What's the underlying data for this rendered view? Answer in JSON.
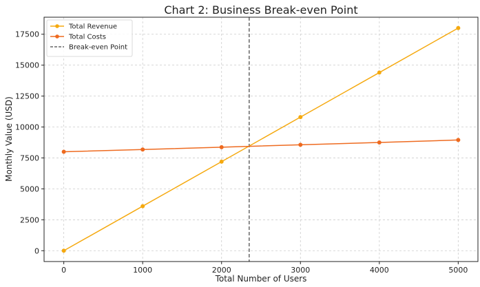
{
  "chart_data": {
    "type": "line",
    "title": "Chart 2: Business Break-even Point",
    "xlabel": "Total Number of Users",
    "ylabel": "Monthly Value (USD)",
    "x": [
      0,
      1000,
      2000,
      3000,
      4000,
      5000
    ],
    "xlim": [
      -250,
      5250
    ],
    "ylim": [
      -875,
      18875
    ],
    "xticks": [
      0,
      1000,
      2000,
      3000,
      4000,
      5000
    ],
    "yticks": [
      0,
      2500,
      5000,
      7500,
      10000,
      12500,
      15000,
      17500
    ],
    "grid": true,
    "legend_position": "top-left",
    "series": [
      {
        "name": "Total Revenue",
        "color": "#f5a90f",
        "values": [
          0,
          3600,
          7200,
          10800,
          14400,
          18000
        ]
      },
      {
        "name": "Total Costs",
        "color": "#ee6a1f",
        "values": [
          8000,
          8180,
          8370,
          8560,
          8750,
          8950
        ]
      }
    ],
    "vlines": [
      {
        "name": "Break-even Point",
        "x": 2350,
        "color": "#666666",
        "style": "dashed"
      }
    ]
  }
}
